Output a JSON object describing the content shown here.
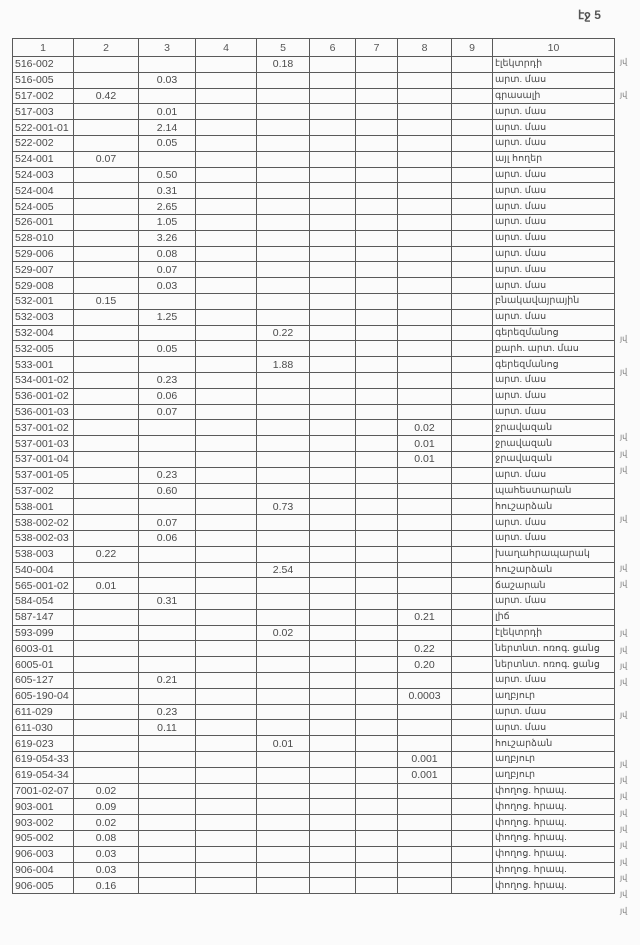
{
  "page_label": "էջ 5",
  "headers": [
    "1",
    "2",
    "3",
    "4",
    "5",
    "6",
    "7",
    "8",
    "9",
    "10"
  ],
  "rows": [
    {
      "cells": [
        "516-002",
        "",
        "",
        "",
        "0.18",
        "",
        "",
        "",
        "",
        "էլեկտրդի"
      ],
      "mark": "յվ"
    },
    {
      "cells": [
        "516-005",
        "",
        "0.03",
        "",
        "",
        "",
        "",
        "",
        "",
        "արտ. մաս"
      ],
      "mark": ""
    },
    {
      "cells": [
        "517-002",
        "0.42",
        "",
        "",
        "",
        "",
        "",
        "",
        "",
        "գրասալի"
      ],
      "mark": "յվ"
    },
    {
      "cells": [
        "517-003",
        "",
        "0.01",
        "",
        "",
        "",
        "",
        "",
        "",
        "արտ. մաս"
      ],
      "mark": ""
    },
    {
      "cells": [
        "522-001-01",
        "",
        "2.14",
        "",
        "",
        "",
        "",
        "",
        "",
        "արտ. մաս"
      ],
      "mark": ""
    },
    {
      "cells": [
        "522-002",
        "",
        "0.05",
        "",
        "",
        "",
        "",
        "",
        "",
        "արտ. մաս"
      ],
      "mark": ""
    },
    {
      "cells": [
        "524-001",
        "0.07",
        "",
        "",
        "",
        "",
        "",
        "",
        "",
        "այլ հողեր"
      ],
      "mark": ""
    },
    {
      "cells": [
        "524-003",
        "",
        "0.50",
        "",
        "",
        "",
        "",
        "",
        "",
        "արտ. մաս"
      ],
      "mark": ""
    },
    {
      "cells": [
        "524-004",
        "",
        "0.31",
        "",
        "",
        "",
        "",
        "",
        "",
        "արտ. մաս"
      ],
      "mark": ""
    },
    {
      "cells": [
        "524-005",
        "",
        "2.65",
        "",
        "",
        "",
        "",
        "",
        "",
        "արտ. մաս"
      ],
      "mark": ""
    },
    {
      "cells": [
        "526-001",
        "",
        "1.05",
        "",
        "",
        "",
        "",
        "",
        "",
        "արտ. մաս"
      ],
      "mark": ""
    },
    {
      "cells": [
        "528-010",
        "",
        "3.26",
        "",
        "",
        "",
        "",
        "",
        "",
        "արտ. մաս"
      ],
      "mark": ""
    },
    {
      "cells": [
        "529-006",
        "",
        "0.08",
        "",
        "",
        "",
        "",
        "",
        "",
        "արտ. մաս"
      ],
      "mark": ""
    },
    {
      "cells": [
        "529-007",
        "",
        "0.07",
        "",
        "",
        "",
        "",
        "",
        "",
        "արտ. մաս"
      ],
      "mark": ""
    },
    {
      "cells": [
        "529-008",
        "",
        "0.03",
        "",
        "",
        "",
        "",
        "",
        "",
        "արտ. մաս"
      ],
      "mark": ""
    },
    {
      "cells": [
        "532-001",
        "0.15",
        "",
        "",
        "",
        "",
        "",
        "",
        "",
        "բնակավայրային"
      ],
      "mark": ""
    },
    {
      "cells": [
        "532-003",
        "",
        "1.25",
        "",
        "",
        "",
        "",
        "",
        "",
        "արտ. մաս"
      ],
      "mark": ""
    },
    {
      "cells": [
        "532-004",
        "",
        "",
        "",
        "0.22",
        "",
        "",
        "",
        "",
        "գերեզմանոց"
      ],
      "mark": "յվ"
    },
    {
      "cells": [
        "532-005",
        "",
        "0.05",
        "",
        "",
        "",
        "",
        "",
        "",
        "քարհ. արտ. մաս"
      ],
      "mark": ""
    },
    {
      "cells": [
        "533-001",
        "",
        "",
        "",
        "1.88",
        "",
        "",
        "",
        "",
        "գերեզմանոց"
      ],
      "mark": "յվ"
    },
    {
      "cells": [
        "534-001-02",
        "",
        "0.23",
        "",
        "",
        "",
        "",
        "",
        "",
        "արտ. մաս"
      ],
      "mark": ""
    },
    {
      "cells": [
        "536-001-02",
        "",
        "0.06",
        "",
        "",
        "",
        "",
        "",
        "",
        "արտ. մաս"
      ],
      "mark": ""
    },
    {
      "cells": [
        "536-001-03",
        "",
        "0.07",
        "",
        "",
        "",
        "",
        "",
        "",
        "արտ. մաս"
      ],
      "mark": ""
    },
    {
      "cells": [
        "537-001-02",
        "",
        "",
        "",
        "",
        "",
        "",
        "0.02",
        "",
        "ջրավազան"
      ],
      "mark": "յվ"
    },
    {
      "cells": [
        "537-001-03",
        "",
        "",
        "",
        "",
        "",
        "",
        "0.01",
        "",
        "ջրավազան"
      ],
      "mark": "յվ"
    },
    {
      "cells": [
        "537-001-04",
        "",
        "",
        "",
        "",
        "",
        "",
        "0.01",
        "",
        "ջրավազան"
      ],
      "mark": "յվ"
    },
    {
      "cells": [
        "537-001-05",
        "",
        "0.23",
        "",
        "",
        "",
        "",
        "",
        "",
        "արտ. մաս"
      ],
      "mark": ""
    },
    {
      "cells": [
        "537-002",
        "",
        "0.60",
        "",
        "",
        "",
        "",
        "",
        "",
        "պահեստարան"
      ],
      "mark": ""
    },
    {
      "cells": [
        "538-001",
        "",
        "",
        "",
        "0.73",
        "",
        "",
        "",
        "",
        "հուշարձան"
      ],
      "mark": "յվ"
    },
    {
      "cells": [
        "538-002-02",
        "",
        "0.07",
        "",
        "",
        "",
        "",
        "",
        "",
        "արտ. մաս"
      ],
      "mark": ""
    },
    {
      "cells": [
        "538-002-03",
        "",
        "0.06",
        "",
        "",
        "",
        "",
        "",
        "",
        "արտ. մաս"
      ],
      "mark": ""
    },
    {
      "cells": [
        "538-003",
        "0.22",
        "",
        "",
        "",
        "",
        "",
        "",
        "",
        "խաղահրապարակ"
      ],
      "mark": "յվ"
    },
    {
      "cells": [
        "540-004",
        "",
        "",
        "",
        "2.54",
        "",
        "",
        "",
        "",
        "հուշարձան"
      ],
      "mark": "յվ"
    },
    {
      "cells": [
        "565-001-02",
        "0.01",
        "",
        "",
        "",
        "",
        "",
        "",
        "",
        "ճաշարան"
      ],
      "mark": ""
    },
    {
      "cells": [
        "584-054",
        "",
        "0.31",
        "",
        "",
        "",
        "",
        "",
        "",
        "արտ. մաս"
      ],
      "mark": ""
    },
    {
      "cells": [
        "587-147",
        "",
        "",
        "",
        "",
        "",
        "",
        "0.21",
        "",
        "լիճ"
      ],
      "mark": "յվ"
    },
    {
      "cells": [
        "593-099",
        "",
        "",
        "",
        "0.02",
        "",
        "",
        "",
        "",
        "էլեկտրդի"
      ],
      "mark": "յվ"
    },
    {
      "cells": [
        "6003-01",
        "",
        "",
        "",
        "",
        "",
        "",
        "0.22",
        "",
        "ներտնտ. ոռոգ. ցանց"
      ],
      "mark": "յվ"
    },
    {
      "cells": [
        "6005-01",
        "",
        "",
        "",
        "",
        "",
        "",
        "0.20",
        "",
        "ներտնտ. ոռոգ. ցանց"
      ],
      "mark": "յվ"
    },
    {
      "cells": [
        "605-127",
        "",
        "0.21",
        "",
        "",
        "",
        "",
        "",
        "",
        "արտ. մաս"
      ],
      "mark": ""
    },
    {
      "cells": [
        "605-190-04",
        "",
        "",
        "",
        "",
        "",
        "",
        "0.0003",
        "",
        "աղբյուր"
      ],
      "mark": "յվ"
    },
    {
      "cells": [
        "611-029",
        "",
        "0.23",
        "",
        "",
        "",
        "",
        "",
        "",
        "արտ. մաս"
      ],
      "mark": ""
    },
    {
      "cells": [
        "611-030",
        "",
        "0.11",
        "",
        "",
        "",
        "",
        "",
        "",
        "արտ. մաս"
      ],
      "mark": ""
    },
    {
      "cells": [
        "619-023",
        "",
        "",
        "",
        "0.01",
        "",
        "",
        "",
        "",
        "հուշարձան"
      ],
      "mark": "յվ"
    },
    {
      "cells": [
        "619-054-33",
        "",
        "",
        "",
        "",
        "",
        "",
        "0.001",
        "",
        "աղբյուր"
      ],
      "mark": "յվ"
    },
    {
      "cells": [
        "619-054-34",
        "",
        "",
        "",
        "",
        "",
        "",
        "0.001",
        "",
        "աղբյուր"
      ],
      "mark": "յվ"
    },
    {
      "cells": [
        "7001-02-07",
        "0.02",
        "",
        "",
        "",
        "",
        "",
        "",
        "",
        "փողոց. հրապ."
      ],
      "mark": "յվ"
    },
    {
      "cells": [
        "903-001",
        "0.09",
        "",
        "",
        "",
        "",
        "",
        "",
        "",
        "փողոց. հրապ."
      ],
      "mark": "յվ"
    },
    {
      "cells": [
        "903-002",
        "0.02",
        "",
        "",
        "",
        "",
        "",
        "",
        "",
        "փողոց. հրապ."
      ],
      "mark": "յվ"
    },
    {
      "cells": [
        "905-002",
        "0.08",
        "",
        "",
        "",
        "",
        "",
        "",
        "",
        "փողոց. հրապ."
      ],
      "mark": "յվ"
    },
    {
      "cells": [
        "906-003",
        "0.03",
        "",
        "",
        "",
        "",
        "",
        "",
        "",
        "փողոց. հրապ."
      ],
      "mark": "յվ"
    },
    {
      "cells": [
        "906-004",
        "0.03",
        "",
        "",
        "",
        "",
        "",
        "",
        "",
        "փողոց. հրապ."
      ],
      "mark": "յվ"
    },
    {
      "cells": [
        "906-005",
        "0.16",
        "",
        "",
        "",
        "",
        "",
        "",
        "",
        "փողոց. հրապ."
      ],
      "mark": "յվ"
    }
  ]
}
